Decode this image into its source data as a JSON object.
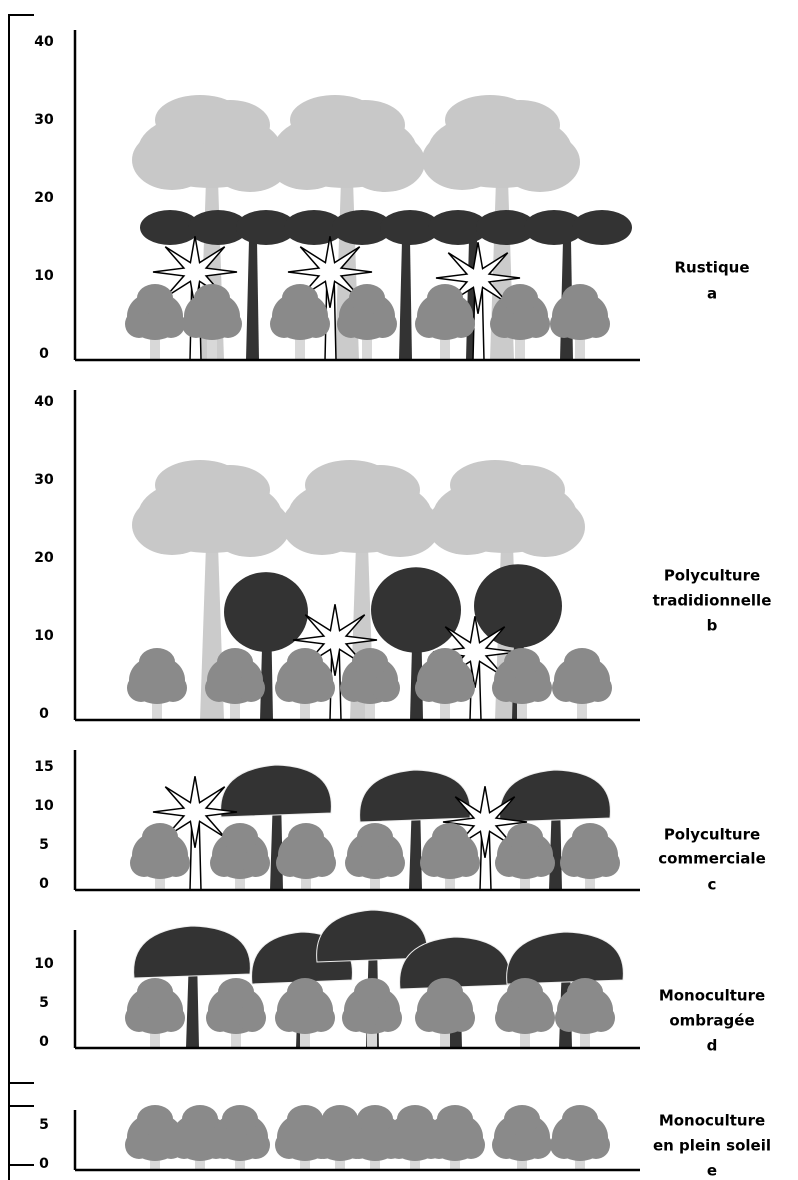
{
  "panels": [
    {
      "label": [
        "Rustique",
        "a"
      ],
      "ticks": [
        "0",
        "10",
        "20",
        "30",
        "40"
      ]
    },
    {
      "label": [
        "Polyculture",
        "tradidionnelle",
        "b"
      ],
      "ticks": [
        "0",
        "10",
        "20",
        "30",
        "40"
      ]
    },
    {
      "label": [
        "Polyculture",
        "commerciale",
        "c"
      ],
      "ticks": [
        "0",
        "5",
        "10",
        "15"
      ]
    },
    {
      "label": [
        "Monoculture",
        "ombragée",
        "d"
      ],
      "ticks": [
        "0",
        "5",
        "10"
      ]
    },
    {
      "label": [
        "Monoculture",
        "en plein soleil",
        "e"
      ],
      "ticks": [
        "0",
        "5"
      ]
    }
  ]
}
